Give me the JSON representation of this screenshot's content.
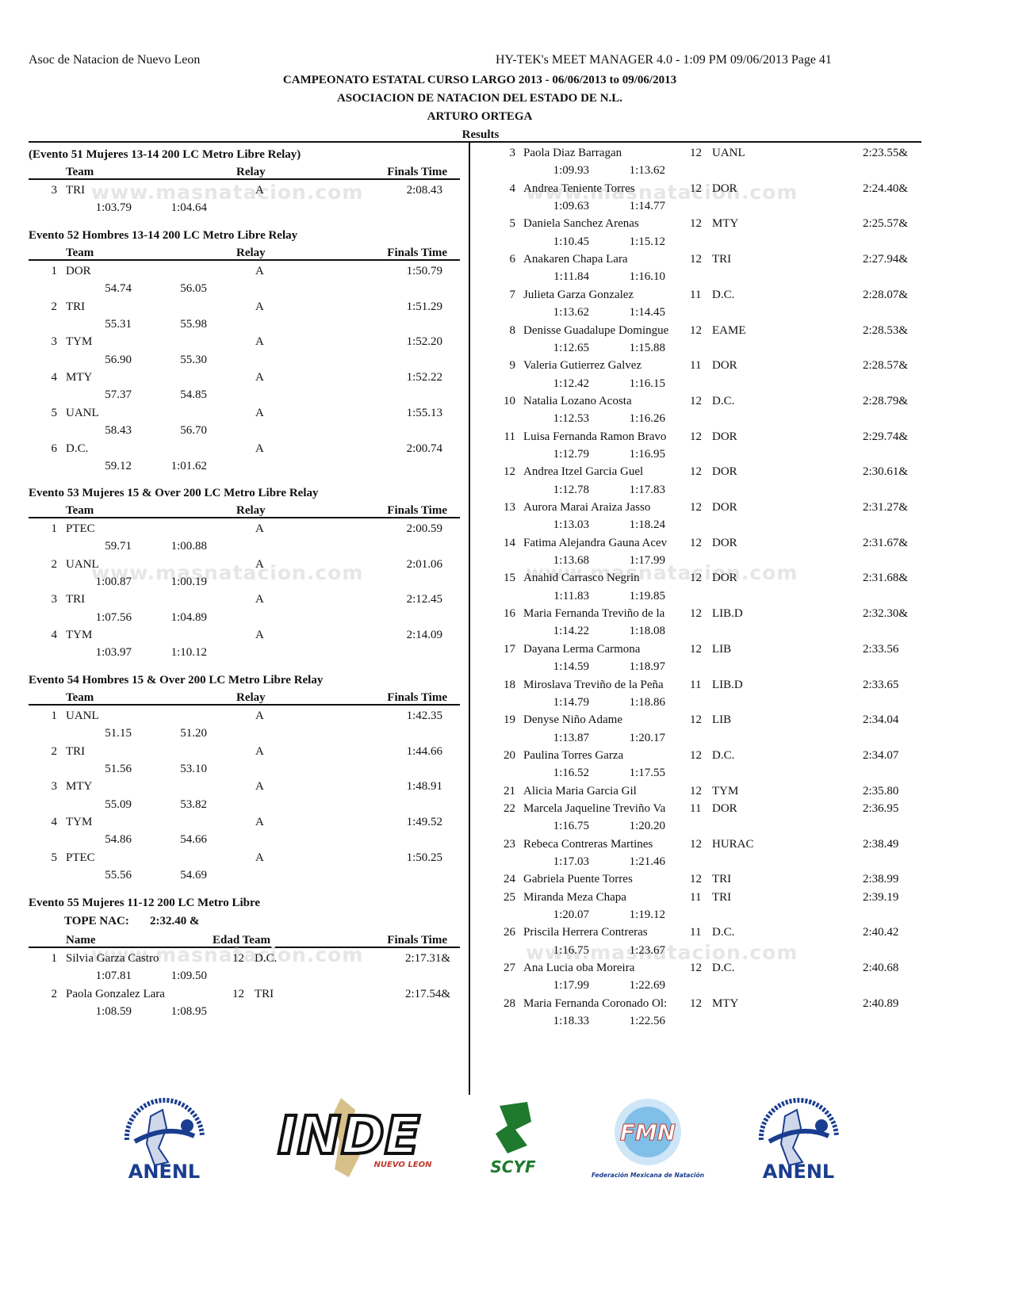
{
  "header": {
    "left": "Asoc de Natacion de Nuevo Leon",
    "right": "HY-TEK's MEET MANAGER 4.0 - 1:09 PM  09/06/2013  Page 41",
    "title1": "CAMPEONATO ESTATAL CURSO LARGO 2013 - 06/06/2013 to 09/06/2013",
    "title2": "ASOCIACION DE NATACION DEL ESTADO DE N.L.",
    "title3": "ARTURO ORTEGA",
    "subtitle": "Results"
  },
  "watermark": "www.masnatacion.com",
  "relay_headers": {
    "team": "Team",
    "relay": "Relay",
    "time": "Finals Time"
  },
  "indiv_headers": {
    "name": "Name",
    "age_team": "Edad Team",
    "time": "Finals Time"
  },
  "relay_events": [
    {
      "title": "(Evento 51  Mujeres 13-14 200 LC Metro Libre Relay)",
      "rows": [
        {
          "place": "3",
          "team": "TRI",
          "relay": "A",
          "time": "2:08.43",
          "splits": [
            "1:03.79",
            "1:04.64"
          ]
        }
      ]
    },
    {
      "title": "Evento 52  Hombres 13-14 200 LC Metro Libre Relay",
      "rows": [
        {
          "place": "1",
          "team": "DOR",
          "relay": "A",
          "time": "1:50.79",
          "splits": [
            "54.74",
            "56.05"
          ]
        },
        {
          "place": "2",
          "team": "TRI",
          "relay": "A",
          "time": "1:51.29",
          "splits": [
            "55.31",
            "55.98"
          ]
        },
        {
          "place": "3",
          "team": "TYM",
          "relay": "A",
          "time": "1:52.20",
          "splits": [
            "56.90",
            "55.30"
          ]
        },
        {
          "place": "4",
          "team": "MTY",
          "relay": "A",
          "time": "1:52.22",
          "splits": [
            "57.37",
            "54.85"
          ]
        },
        {
          "place": "5",
          "team": "UANL",
          "relay": "A",
          "time": "1:55.13",
          "splits": [
            "58.43",
            "56.70"
          ]
        },
        {
          "place": "6",
          "team": "D.C.",
          "relay": "A",
          "time": "2:00.74",
          "splits": [
            "59.12",
            "1:01.62"
          ]
        }
      ]
    },
    {
      "title": "Evento 53  Mujeres 15 & Over 200 LC Metro Libre Relay",
      "rows": [
        {
          "place": "1",
          "team": "PTEC",
          "relay": "A",
          "time": "2:00.59",
          "splits": [
            "59.71",
            "1:00.88"
          ]
        },
        {
          "place": "2",
          "team": "UANL",
          "relay": "A",
          "time": "2:01.06",
          "splits": [
            "1:00.87",
            "1:00.19"
          ]
        },
        {
          "place": "3",
          "team": "TRI",
          "relay": "A",
          "time": "2:12.45",
          "splits": [
            "1:07.56",
            "1:04.89"
          ]
        },
        {
          "place": "4",
          "team": "TYM",
          "relay": "A",
          "time": "2:14.09",
          "splits": [
            "1:03.97",
            "1:10.12"
          ]
        }
      ]
    },
    {
      "title": "Evento 54  Hombres 15 & Over 200 LC Metro Libre Relay",
      "rows": [
        {
          "place": "1",
          "team": "UANL",
          "relay": "A",
          "time": "1:42.35",
          "splits": [
            "51.15",
            "51.20"
          ]
        },
        {
          "place": "2",
          "team": "TRI",
          "relay": "A",
          "time": "1:44.66",
          "splits": [
            "51.56",
            "53.10"
          ]
        },
        {
          "place": "3",
          "team": "MTY",
          "relay": "A",
          "time": "1:48.91",
          "splits": [
            "55.09",
            "53.82"
          ]
        },
        {
          "place": "4",
          "team": "TYM",
          "relay": "A",
          "time": "1:49.52",
          "splits": [
            "54.86",
            "54.66"
          ]
        },
        {
          "place": "5",
          "team": "PTEC",
          "relay": "A",
          "time": "1:50.25",
          "splits": [
            "55.56",
            "54.69"
          ]
        }
      ]
    }
  ],
  "indiv_event": {
    "title": "Evento 55  Mujeres 11-12 200 LC Metro Libre",
    "record_label": "TOPE NAC:",
    "record_value": "2:32.40  &",
    "rows_left": [
      {
        "place": "1",
        "name": "Silvia Garza Castro",
        "age": "12",
        "team": "D.C.",
        "time": "2:17.31&",
        "splits": [
          "1:07.81",
          "1:09.50"
        ]
      },
      {
        "place": "2",
        "name": "Paola Gonzalez Lara",
        "age": "12",
        "team": "TRI",
        "time": "2:17.54&",
        "splits": [
          "1:08.59",
          "1:08.95"
        ]
      }
    ],
    "rows_right": [
      {
        "place": "3",
        "name": "Paola Diaz Barragan",
        "age": "12",
        "team": "UANL",
        "time": "2:23.55&",
        "splits": [
          "1:09.93",
          "1:13.62"
        ]
      },
      {
        "place": "4",
        "name": "Andrea Teniente Torres",
        "age": "12",
        "team": "DOR",
        "time": "2:24.40&",
        "splits": [
          "1:09.63",
          "1:14.77"
        ]
      },
      {
        "place": "5",
        "name": "Daniela Sanchez Arenas",
        "age": "12",
        "team": "MTY",
        "time": "2:25.57&",
        "splits": [
          "1:10.45",
          "1:15.12"
        ]
      },
      {
        "place": "6",
        "name": "Anakaren Chapa Lara",
        "age": "12",
        "team": "TRI",
        "time": "2:27.94&",
        "splits": [
          "1:11.84",
          "1:16.10"
        ]
      },
      {
        "place": "7",
        "name": "Julieta Garza Gonzalez",
        "age": "11",
        "team": "D.C.",
        "time": "2:28.07&",
        "splits": [
          "1:13.62",
          "1:14.45"
        ]
      },
      {
        "place": "8",
        "name": "Denisse Guadalupe Domingue",
        "age": "12",
        "team": "EAME",
        "time": "2:28.53&",
        "splits": [
          "1:12.65",
          "1:15.88"
        ]
      },
      {
        "place": "9",
        "name": "Valeria Gutierrez Galvez",
        "age": "11",
        "team": "DOR",
        "time": "2:28.57&",
        "splits": [
          "1:12.42",
          "1:16.15"
        ]
      },
      {
        "place": "10",
        "name": "Natalia Lozano Acosta",
        "age": "12",
        "team": "D.C.",
        "time": "2:28.79&",
        "splits": [
          "1:12.53",
          "1:16.26"
        ]
      },
      {
        "place": "11",
        "name": "Luisa Fernanda Ramon Bravo",
        "age": "12",
        "team": "DOR",
        "time": "2:29.74&",
        "splits": [
          "1:12.79",
          "1:16.95"
        ]
      },
      {
        "place": "12",
        "name": "Andrea Itzel Garcia Guel",
        "age": "12",
        "team": "DOR",
        "time": "2:30.61&",
        "splits": [
          "1:12.78",
          "1:17.83"
        ]
      },
      {
        "place": "13",
        "name": "Aurora Marai Araiza Jasso",
        "age": "12",
        "team": "DOR",
        "time": "2:31.27&",
        "splits": [
          "1:13.03",
          "1:18.24"
        ]
      },
      {
        "place": "14",
        "name": "Fatima Alejandra Gauna Acev",
        "age": "12",
        "team": "DOR",
        "time": "2:31.67&",
        "splits": [
          "1:13.68",
          "1:17.99"
        ]
      },
      {
        "place": "15",
        "name": "Anahid Carrasco  Negrin",
        "age": "12",
        "team": "DOR",
        "time": "2:31.68&",
        "splits": [
          "1:11.83",
          "1:19.85"
        ]
      },
      {
        "place": "16",
        "name": "Maria Fernanda Treviño de la",
        "age": "12",
        "team": "LIB.D",
        "time": "2:32.30&",
        "splits": [
          "1:14.22",
          "1:18.08"
        ]
      },
      {
        "place": "17",
        "name": "Dayana Lerma Carmona",
        "age": "12",
        "team": "LIB",
        "time": "2:33.56",
        "splits": [
          "1:14.59",
          "1:18.97"
        ]
      },
      {
        "place": "18",
        "name": "Miroslava Treviño de la Peña",
        "age": "11",
        "team": "LIB.D",
        "time": "2:33.65",
        "splits": [
          "1:14.79",
          "1:18.86"
        ]
      },
      {
        "place": "19",
        "name": "Denyse Niño Adame",
        "age": "12",
        "team": "LIB",
        "time": "2:34.04",
        "splits": [
          "1:13.87",
          "1:20.17"
        ]
      },
      {
        "place": "20",
        "name": "Paulina Torres Garza",
        "age": "12",
        "team": "D.C.",
        "time": "2:34.07",
        "splits": [
          "1:16.52",
          "1:17.55"
        ]
      },
      {
        "place": "21",
        "name": "Alicia Maria Garcia Gil",
        "age": "12",
        "team": "TYM",
        "time": "2:35.80",
        "splits": []
      },
      {
        "place": "22",
        "name": "Marcela Jaqueline Treviño Va",
        "age": "11",
        "team": "DOR",
        "time": "2:36.95",
        "splits": [
          "1:16.75",
          "1:20.20"
        ]
      },
      {
        "place": "23",
        "name": "Rebeca Contreras Martines",
        "age": "12",
        "team": "HURAC",
        "time": "2:38.49",
        "splits": [
          "1:17.03",
          "1:21.46"
        ]
      },
      {
        "place": "24",
        "name": "Gabriela Puente Torres",
        "age": "12",
        "team": "TRI",
        "time": "2:38.99",
        "splits": []
      },
      {
        "place": "25",
        "name": "Miranda Meza Chapa",
        "age": "11",
        "team": "TRI",
        "time": "2:39.19",
        "splits": [
          "1:20.07",
          "1:19.12"
        ]
      },
      {
        "place": "26",
        "name": "Priscila Herrera Contreras",
        "age": "11",
        "team": "D.C.",
        "time": "2:40.42",
        "splits": [
          "1:16.75",
          "1:23.67"
        ]
      },
      {
        "place": "27",
        "name": "Ana Lucia oba Moreira",
        "age": "12",
        "team": "D.C.",
        "time": "2:40.68",
        "splits": [
          "1:17.99",
          "1:22.69"
        ]
      },
      {
        "place": "28",
        "name": "Maria Fernanda Coronado Ol:",
        "age": "12",
        "team": "MTY",
        "time": "2:40.89",
        "splits": [
          "1:18.33",
          "1:22.56"
        ]
      }
    ]
  },
  "logos": [
    {
      "name": "ANENL",
      "ring": "Asociación de Natación del Estado de Nuevo León",
      "color": "#1a3d8f"
    },
    {
      "name": "INDE",
      "sub": "NUEVO LEON",
      "color": "#1a1a1a"
    },
    {
      "name": "SCYF",
      "color": "#1f7a2e"
    },
    {
      "name": "FMN",
      "sub": "Federación Mexicana de Natación",
      "color": "#2a7fc9"
    },
    {
      "name": "ANENL",
      "ring": "Asociación de Natación del Estado de Nuevo León",
      "color": "#1a3d8f"
    }
  ]
}
